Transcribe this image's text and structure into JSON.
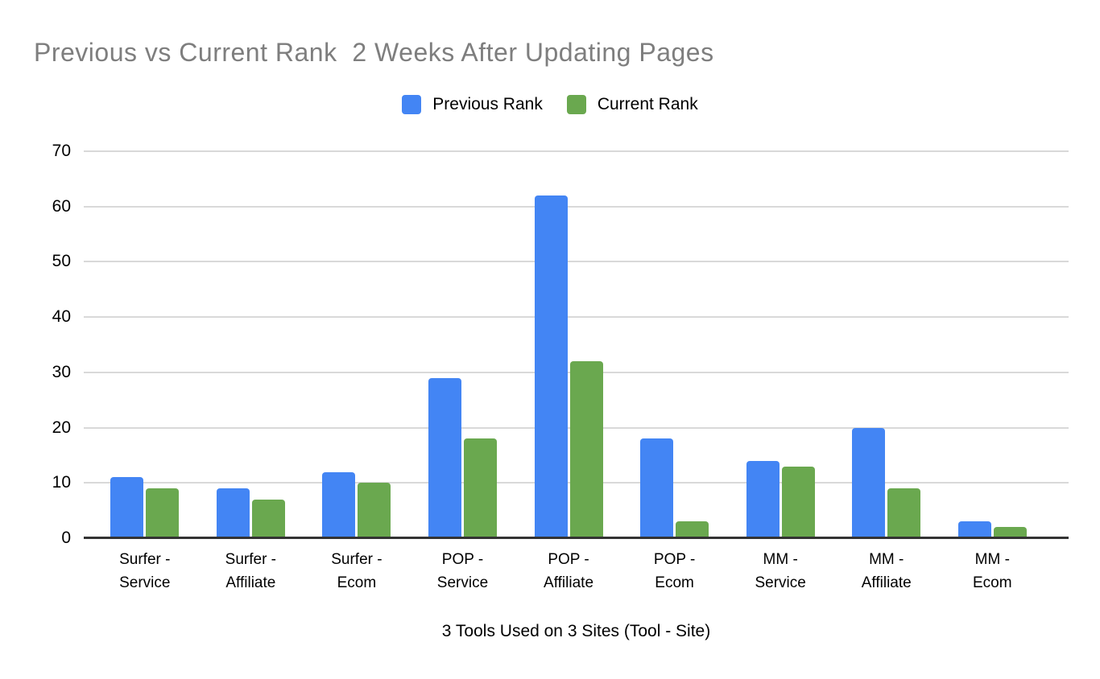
{
  "chart_data": {
    "type": "bar",
    "title": "Previous vs Current Rank  2 Weeks After Updating Pages",
    "xlabel": "3 Tools Used on 3 Sites (Tool - Site)",
    "ylabel": "",
    "categories": [
      "Surfer - Service",
      "Surfer - Affiliate",
      "Surfer - Ecom",
      "POP - Service",
      "POP - Affiliate",
      "POP - Ecom",
      "MM - Service",
      "MM - Affiliate",
      "MM - Ecom"
    ],
    "series": [
      {
        "name": "Previous Rank",
        "color": "#4385F4",
        "values": [
          11,
          9,
          12,
          29,
          62,
          18,
          14,
          20,
          3
        ]
      },
      {
        "name": "Current Rank",
        "color": "#6AA84F",
        "values": [
          9,
          7,
          10,
          18,
          32,
          3,
          13,
          9,
          2
        ]
      }
    ],
    "ylim": [
      0,
      70
    ],
    "yticks": [
      0,
      10,
      20,
      30,
      40,
      50,
      60,
      70
    ],
    "grid": true,
    "legend_position": "top"
  },
  "colors": {
    "background": "#FFFFFF",
    "title_text": "#7E7E7E",
    "axis_text": "#000000",
    "gridline": "#D9D9D9",
    "baseline": "#333333"
  }
}
